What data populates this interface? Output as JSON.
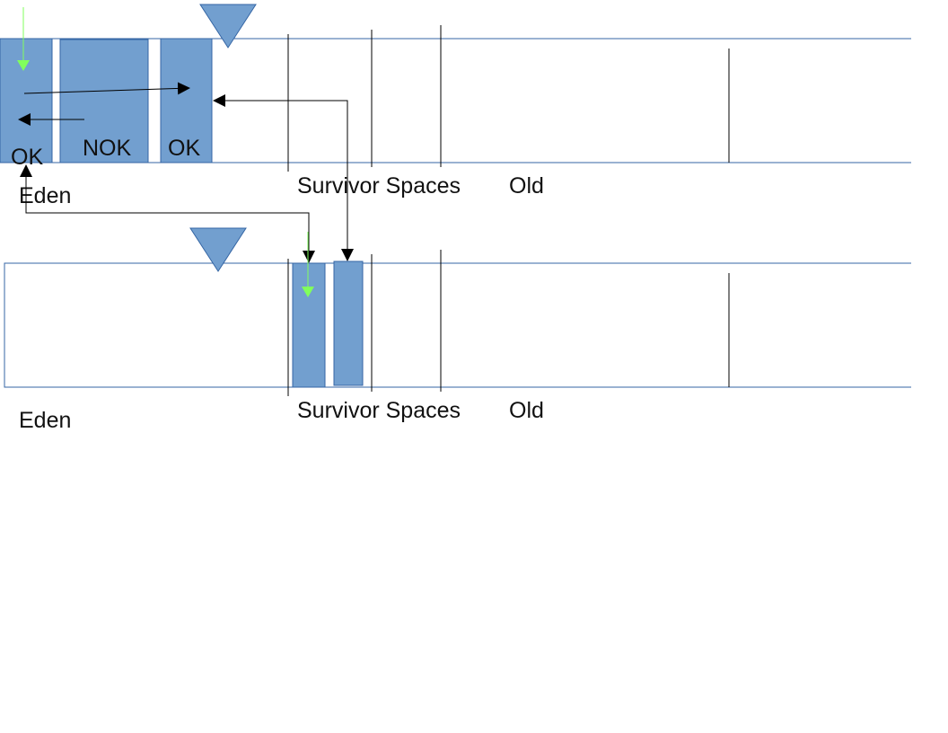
{
  "colors": {
    "block_fill": "#729fcf",
    "block_stroke": "#3465a4",
    "border": "#3465a4",
    "arrow": "#000000",
    "promotion_arrow": "#81ff5c"
  },
  "top_heap": {
    "blocks": [
      {
        "label": "OK"
      },
      {
        "label": "NOK"
      },
      {
        "label": "OK"
      }
    ],
    "labels": {
      "eden": "Eden",
      "survivor": "Survivor Spaces",
      "old": "Old"
    }
  },
  "bottom_heap": {
    "labels": {
      "eden": "Eden",
      "survivor": "Survivor Spaces",
      "old": "Old"
    }
  }
}
